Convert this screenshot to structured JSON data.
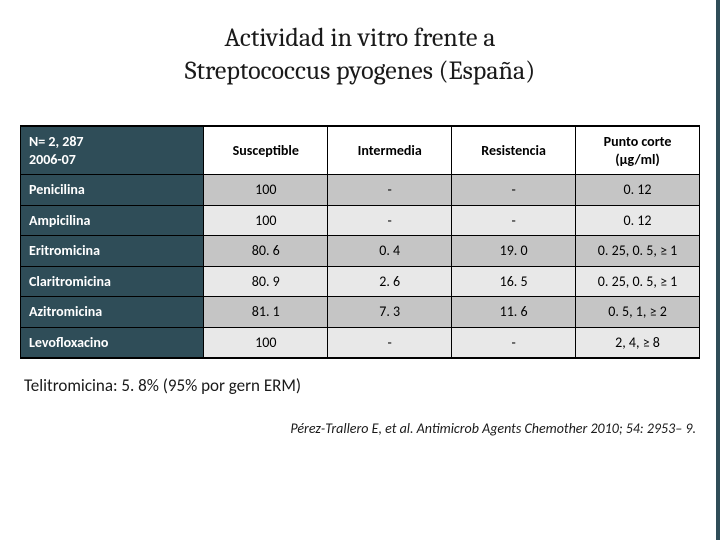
{
  "title": {
    "line1": "Actividad in vitro frente a",
    "line2": "Streptococcus pyogenes (España)"
  },
  "table": {
    "corner": {
      "line1": "N= 2, 287",
      "line2": "2006-07"
    },
    "columns": [
      "Susceptible",
      "Intermedia",
      "Resistencia"
    ],
    "columns_cutoff": {
      "line1": "Punto corte",
      "line2": "(µg/ml)"
    },
    "header_bg": "#2f4d58",
    "header_fg": "#ffffff",
    "row_odd_bg": "#c5c5c5",
    "row_even_bg": "#e8e8e8",
    "border_color": "#000000",
    "rows": [
      {
        "label": "Penicilina",
        "values": [
          "100",
          "-",
          "-",
          "0. 12"
        ]
      },
      {
        "label": "Ampicilina",
        "values": [
          "100",
          "-",
          "-",
          "0. 12"
        ]
      },
      {
        "label": "Eritromicina",
        "values": [
          "80. 6",
          "0. 4",
          "19. 0",
          "0. 25, 0. 5, ≥ 1"
        ]
      },
      {
        "label": "Claritromicina",
        "values": [
          "80. 9",
          "2. 6",
          "16. 5",
          "0. 25, 0. 5, ≥ 1"
        ]
      },
      {
        "label": "Azitromicina",
        "values": [
          "81. 1",
          "7. 3",
          "11. 6",
          "0. 5, 1, ≥ 2"
        ]
      },
      {
        "label": "Levofloxacino",
        "values": [
          "100",
          "-",
          "-",
          "2, 4, ≥ 8"
        ]
      }
    ]
  },
  "note": "Telitromicina: 5. 8% (95% por gern ERM)",
  "citation": "Pérez-Trallero E, et al. Antimicrob Agents Chemother 2010; 54: 2953– 9.",
  "colors": {
    "accent": "#2f4d58",
    "background": "#ffffff",
    "text": "#1a1a1a"
  }
}
